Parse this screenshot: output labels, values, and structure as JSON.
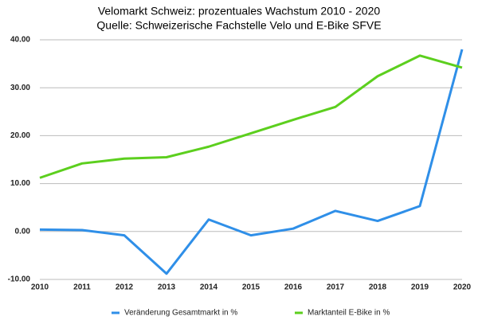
{
  "chart_data": {
    "type": "line",
    "title": [
      "Velomarkt Schweiz: prozentuales Wachstum 2010 - 2020",
      "Quelle: Schweizerische Fachstelle Velo und E-Bike SFVE"
    ],
    "x": [
      2010,
      2011,
      2012,
      2013,
      2014,
      2015,
      2016,
      2017,
      2018,
      2019,
      2020
    ],
    "xlim": [
      2010,
      2020
    ],
    "xticks": [
      2010,
      2011,
      2012,
      2013,
      2014,
      2015,
      2016,
      2017,
      2018,
      2019,
      2020
    ],
    "ylim": [
      -10,
      40
    ],
    "yticks": [
      {
        "value": -10,
        "label": "-10.00"
      },
      {
        "value": 0,
        "label": "0.00"
      },
      {
        "value": 10,
        "label": "10.00"
      },
      {
        "value": 20,
        "label": "20.00"
      },
      {
        "value": 30,
        "label": "30.00"
      },
      {
        "value": 40,
        "label": "40.00"
      }
    ],
    "grid": true,
    "legend": "bottom",
    "series": [
      {
        "name": "Veränderung Gesamtmarkt in %",
        "color": "#2f8fe8",
        "values": [
          0.4,
          0.3,
          -0.8,
          -8.8,
          2.5,
          -0.8,
          0.6,
          4.3,
          2.2,
          5.3,
          38
        ]
      },
      {
        "name": "Marktanteil E-Bike in %",
        "color": "#5ccf1e",
        "values": [
          11.2,
          14.2,
          15.2,
          15.5,
          17.7,
          20.5,
          23.3,
          26.0,
          32.4,
          36.7,
          34.2
        ]
      }
    ]
  }
}
